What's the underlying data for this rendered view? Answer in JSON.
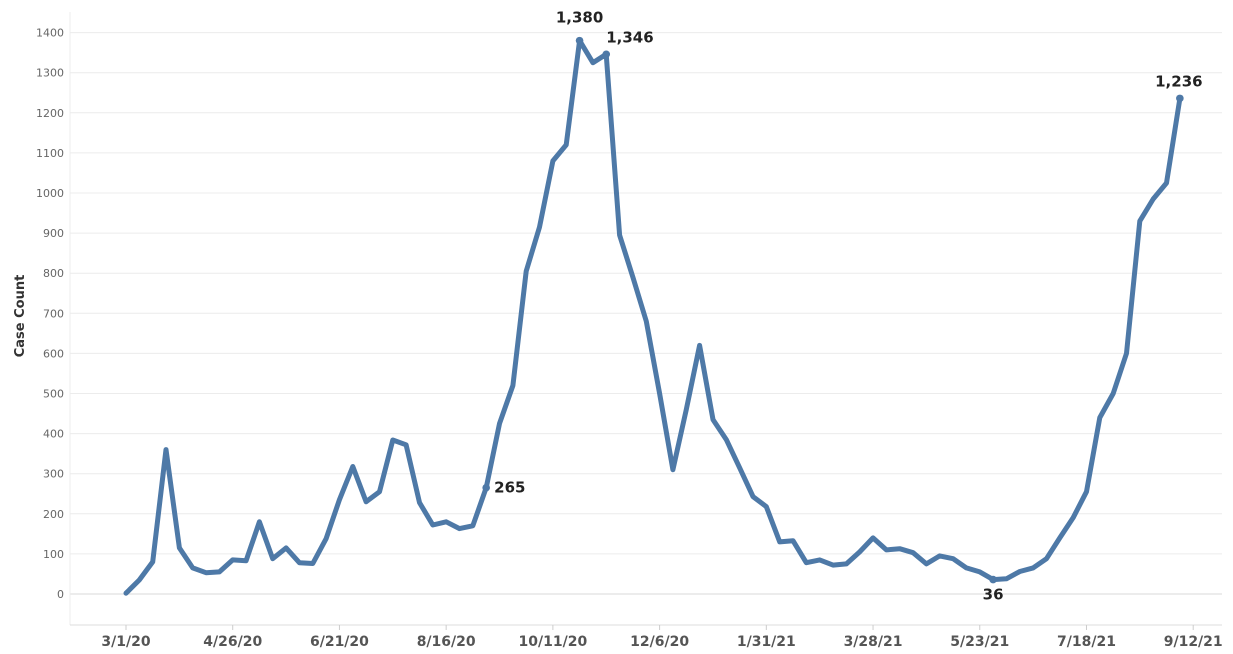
{
  "chart_data": {
    "type": "line",
    "ylabel": "Case Count",
    "xlabel": "",
    "ylim": [
      -80,
      1450
    ],
    "yticks": [
      0,
      100,
      200,
      300,
      400,
      500,
      600,
      700,
      800,
      900,
      1000,
      1100,
      1200,
      1300,
      1400
    ],
    "x_ticks": [
      {
        "index": 0,
        "label": "3/1/20"
      },
      {
        "index": 8,
        "label": "4/26/20"
      },
      {
        "index": 16,
        "label": "6/21/20"
      },
      {
        "index": 24,
        "label": "8/16/20"
      },
      {
        "index": 32,
        "label": "10/11/20"
      },
      {
        "index": 40,
        "label": "12/6/20"
      },
      {
        "index": 48,
        "label": "1/31/21"
      },
      {
        "index": 56,
        "label": "3/28/21"
      },
      {
        "index": 64,
        "label": "5/23/21"
      },
      {
        "index": 72,
        "label": "7/18/21"
      },
      {
        "index": 80,
        "label": "9/12/21"
      }
    ],
    "grid": true,
    "color": "#4e79a7",
    "series": [
      {
        "values": [
          2,
          35,
          80,
          360,
          115,
          65,
          53,
          55,
          85,
          83,
          180,
          88,
          115,
          78,
          76,
          138,
          235,
          318,
          230,
          255,
          384,
          372,
          228,
          172,
          180,
          163,
          170,
          265,
          425,
          520,
          805,
          915,
          1080,
          1120,
          1380,
          1325,
          1346,
          895,
          790,
          680,
          500,
          310,
          460,
          620,
          435,
          385,
          315,
          243,
          218,
          130,
          133,
          78,
          85,
          72,
          75,
          105,
          140,
          110,
          113,
          103,
          75,
          95,
          88,
          65,
          55,
          36,
          38,
          56,
          65,
          88,
          140,
          190,
          255,
          440,
          500,
          600,
          930,
          985,
          1025,
          1236
        ]
      }
    ],
    "annotations": [
      {
        "index": 34,
        "value": 1380,
        "text": "1,380"
      },
      {
        "index": 36,
        "value": 1346,
        "text": "1,346"
      },
      {
        "index": 27,
        "value": 265,
        "text": "265"
      },
      {
        "index": 65,
        "value": 36,
        "text": "36"
      },
      {
        "index": 79,
        "value": 1236,
        "text": "1,236"
      }
    ]
  }
}
